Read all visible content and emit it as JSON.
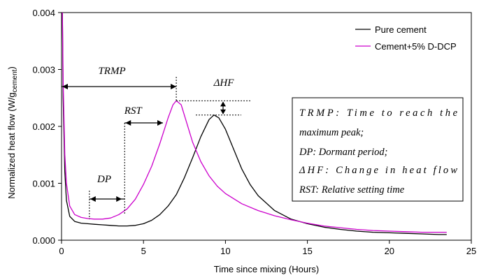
{
  "chart_data": {
    "type": "line",
    "xlabel": "Time since mixing (Hours)",
    "ylabel_prefix": "Normalized heat flow (W/g",
    "ylabel_sub": "cement",
    "ylabel_suffix": ")",
    "xlim": [
      0,
      25
    ],
    "ylim": [
      0,
      0.004
    ],
    "xticks": [
      "0",
      "5",
      "10",
      "15",
      "20",
      "25"
    ],
    "yticks": [
      "0.000",
      "0.001",
      "0.002",
      "0.003",
      "0.004"
    ],
    "grid": false,
    "legend_placement": "top-right",
    "series": [
      {
        "name": "Pure cement",
        "color": "#000000",
        "x": [
          0.05,
          0.1,
          0.2,
          0.3,
          0.5,
          0.8,
          1.2,
          1.6,
          2,
          2.5,
          3,
          3.5,
          4,
          4.5,
          5,
          5.5,
          6,
          6.5,
          7,
          7.5,
          8,
          8.5,
          9,
          9.3,
          9.6,
          10,
          10.5,
          11,
          11.5,
          12,
          13,
          14,
          15,
          16,
          17,
          18,
          19,
          20,
          21,
          22,
          23,
          23.5
        ],
        "values": [
          0.004,
          0.0025,
          0.0012,
          0.0007,
          0.00042,
          0.00033,
          0.0003,
          0.00029,
          0.00028,
          0.00027,
          0.00026,
          0.00025,
          0.00025,
          0.00026,
          0.00029,
          0.00035,
          0.00045,
          0.0006,
          0.0008,
          0.0011,
          0.00145,
          0.00182,
          0.00212,
          0.0022,
          0.00215,
          0.00195,
          0.0016,
          0.00125,
          0.00098,
          0.00078,
          0.00052,
          0.00037,
          0.00029,
          0.00023,
          0.00019,
          0.00016,
          0.00014,
          0.00013,
          0.00012,
          0.00011,
          0.0001,
          0.0001
        ]
      },
      {
        "name": "Cement+5% D-DCP",
        "color": "#cc00cc",
        "x": [
          0.05,
          0.1,
          0.2,
          0.3,
          0.5,
          0.8,
          1.2,
          1.6,
          2,
          2.5,
          3,
          3.5,
          4,
          4.5,
          5,
          5.5,
          6,
          6.5,
          6.8,
          7,
          7.3,
          7.6,
          8,
          8.5,
          9,
          9.5,
          10,
          11,
          12,
          13,
          14,
          15,
          16,
          17,
          18,
          19,
          20,
          21,
          22,
          23,
          23.5
        ],
        "values": [
          0.004,
          0.0028,
          0.0015,
          0.001,
          0.0006,
          0.00045,
          0.0004,
          0.00038,
          0.00037,
          0.00037,
          0.00039,
          0.00045,
          0.00055,
          0.00072,
          0.00098,
          0.0013,
          0.0017,
          0.00215,
          0.00238,
          0.00245,
          0.00238,
          0.0021,
          0.00172,
          0.00138,
          0.00113,
          0.00095,
          0.00082,
          0.00064,
          0.00052,
          0.00043,
          0.00036,
          0.0003,
          0.00025,
          0.00022,
          0.00019,
          0.00017,
          0.00016,
          0.00015,
          0.00014,
          0.00014,
          0.00014
        ]
      }
    ],
    "annotations": {
      "trmp": "TRMP",
      "rst": "RST",
      "dp": "DP",
      "dhf": "ΔHF"
    },
    "markers": {
      "trmp_end_x": 7,
      "rst_start_x": 3.85,
      "dp_start_x": 1.7,
      "dp_end_x": 3.85,
      "peak_modified_y": 0.00245,
      "peak_pure_y": 0.0022
    }
  },
  "textbox": {
    "lines": [
      "TRMP: Time to reach the",
      "maximum peak;",
      "DP: Dormant period;",
      "ΔHF: Change in heat flow",
      "RST: Relative setting time"
    ]
  }
}
